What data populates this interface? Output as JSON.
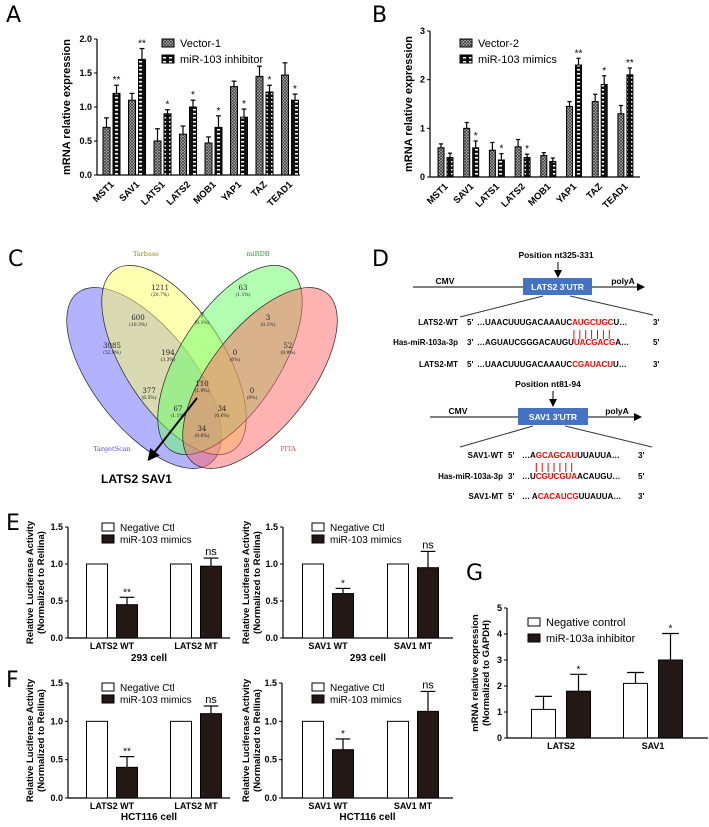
{
  "panel_labels": [
    "A",
    "B",
    "C",
    "D",
    "E",
    "F",
    "G"
  ],
  "chart_data": [
    {
      "panel": "A",
      "type": "bar",
      "ylabel": "mRNA relative expression",
      "xlabel": "",
      "ylim": [
        0,
        2.0
      ],
      "yticks": [
        "0.0",
        "0.5",
        "1.0",
        "1.5",
        "2.0"
      ],
      "legend": "top-right",
      "categories": [
        "MST1",
        "SAV1",
        "LATS1",
        "LATS2",
        "MOB1",
        "YAP1",
        "TAZ",
        "TEAD1"
      ],
      "series": [
        {
          "name": "Vector-1",
          "values": [
            0.7,
            1.1,
            0.5,
            0.6,
            0.47,
            1.3,
            1.45,
            1.47
          ],
          "errors": [
            0.14,
            0.1,
            0.18,
            0.12,
            0.09,
            0.08,
            0.15,
            0.18
          ]
        },
        {
          "name": "miR-103 inhibitor",
          "values": [
            1.2,
            1.7,
            0.9,
            1.0,
            0.7,
            0.85,
            1.22,
            1.1
          ],
          "errors": [
            0.12,
            0.16,
            0.06,
            0.1,
            0.17,
            0.12,
            0.1,
            0.09
          ]
        }
      ],
      "significance": [
        "**",
        "**",
        "*",
        "*",
        "*",
        "*",
        "*",
        "*"
      ]
    },
    {
      "panel": "B",
      "type": "bar",
      "ylabel": "mRNA relative expression",
      "xlabel": "",
      "ylim": [
        0,
        3
      ],
      "yticks": [
        "0",
        "1",
        "2",
        "3"
      ],
      "legend": "top-left",
      "categories": [
        "MST1",
        "SAV1",
        "LATS1",
        "LATS2",
        "MOB1",
        "YAP1",
        "TAZ",
        "TEAD1"
      ],
      "series": [
        {
          "name": "Vector-2",
          "values": [
            0.6,
            1.0,
            0.55,
            0.62,
            0.44,
            1.45,
            1.55,
            1.3
          ],
          "errors": [
            0.08,
            0.12,
            0.16,
            0.15,
            0.06,
            0.1,
            0.15,
            0.17
          ]
        },
        {
          "name": "miR-103 mimics",
          "values": [
            0.4,
            0.6,
            0.35,
            0.4,
            0.32,
            2.3,
            1.9,
            2.1
          ],
          "errors": [
            0.09,
            0.14,
            0.13,
            0.07,
            0.07,
            0.14,
            0.18,
            0.14
          ]
        }
      ],
      "significance": [
        "",
        "*",
        "*",
        "*",
        "",
        "**",
        "*",
        "**"
      ]
    },
    {
      "panel": "E",
      "type": "bar",
      "ylabel": [
        "Relative Luciferase Activity",
        "(Normalized to Rellina)"
      ],
      "xlabel": "293 cell",
      "ylim": [
        0,
        1.5
      ],
      "yticks": [
        "0.0",
        "0.5",
        "1.0",
        "1.5"
      ],
      "legend": "top-left",
      "categories": [
        "LATS2 WT",
        "LATS2 MT"
      ],
      "series": [
        {
          "name": "Negative Ctl",
          "values": [
            1,
            1
          ],
          "errors": [
            0,
            0
          ]
        },
        {
          "name": "miR-103 mimics",
          "values": [
            0.45,
            0.97
          ],
          "errors": [
            0.1,
            0.11
          ]
        }
      ],
      "significance": [
        "**",
        "ns"
      ]
    },
    {
      "panel": "E",
      "type": "bar",
      "ylabel": [
        "Relative Luciferase Activity",
        "(Normalized to Rellina)"
      ],
      "xlabel": "293 cell",
      "ylim": [
        0,
        1.5
      ],
      "yticks": [
        "0.0",
        "0.5",
        "1.0",
        "1.5"
      ],
      "legend": "top-left",
      "categories": [
        "SAV1 WT",
        "SAV1 MT"
      ],
      "series": [
        {
          "name": "Negative Ctl",
          "values": [
            1,
            1
          ],
          "errors": [
            0,
            0
          ]
        },
        {
          "name": "miR-103 mimics",
          "values": [
            0.6,
            0.95
          ],
          "errors": [
            0.07,
            0.22
          ]
        }
      ],
      "significance": [
        "*",
        "ns"
      ]
    },
    {
      "panel": "F",
      "type": "bar",
      "ylabel": [
        "Relative Luciferase Activity",
        "(Normalized to Rellina)"
      ],
      "xlabel": "HCT116 cell",
      "ylim": [
        0,
        1.5
      ],
      "yticks": [
        "0.0",
        "0.5",
        "1.0",
        "1.5"
      ],
      "legend": "top-left",
      "categories": [
        "LATS2 WT",
        "LATS2 MT"
      ],
      "series": [
        {
          "name": "Negative Ctl",
          "values": [
            1,
            1
          ],
          "errors": [
            0,
            0
          ]
        },
        {
          "name": "miR-103 mimics",
          "values": [
            0.4,
            1.1
          ],
          "errors": [
            0.14,
            0.1
          ]
        }
      ],
      "significance": [
        "**",
        "ns"
      ]
    },
    {
      "panel": "F",
      "type": "bar",
      "ylabel": [
        "Relative Luciferase Activity",
        "(Normalized to Rellina)"
      ],
      "xlabel": "HCT116 cell",
      "ylim": [
        0,
        1.5
      ],
      "yticks": [
        "0.0",
        "0.5",
        "1.0",
        "1.5"
      ],
      "legend": "top-left",
      "categories": [
        "SAV1 WT",
        "SAV1 MT"
      ],
      "series": [
        {
          "name": "Negative Ctl",
          "values": [
            1,
            1
          ],
          "errors": [
            0,
            0
          ]
        },
        {
          "name": "miR-103 mimics",
          "values": [
            0.63,
            1.13
          ],
          "errors": [
            0.14,
            0.26
          ]
        }
      ],
      "significance": [
        "*",
        "ns"
      ]
    },
    {
      "panel": "G",
      "type": "bar",
      "ylabel": [
        "mRNA relative expression",
        "(Normalized to GAPDH)"
      ],
      "xlabel": "",
      "ylim": [
        0,
        5
      ],
      "yticks": [
        "0",
        "1",
        "2",
        "3",
        "4",
        "5"
      ],
      "legend": "top-left",
      "categories": [
        "LATS2",
        "SAV1"
      ],
      "series": [
        {
          "name": "Negative control",
          "values": [
            1.1,
            2.1
          ],
          "errors": [
            0.5,
            0.42
          ]
        },
        {
          "name": "miR-103a inhibitor",
          "values": [
            1.8,
            3.0
          ],
          "errors": [
            0.65,
            1.02
          ]
        }
      ],
      "significance": [
        "*",
        "*"
      ]
    }
  ],
  "venn": {
    "sets": [
      {
        "name": "Tarbase",
        "color": "#8e8a2a"
      },
      {
        "name": "miRDB",
        "color": "#2e9a2e"
      },
      {
        "name": "TargetScan",
        "color": "#4a4af0"
      },
      {
        "name": "PITA",
        "color": "#f04a4a"
      }
    ],
    "regions": [
      {
        "count": "1211",
        "pct": "(20.7%)"
      },
      {
        "count": "63",
        "pct": "(1.1%)"
      },
      {
        "count": "600",
        "pct": "(10.3%)"
      },
      {
        "count": "7",
        "pct": "(0.1%)"
      },
      {
        "count": "3",
        "pct": "(0.1%)"
      },
      {
        "count": "3085",
        "pct": "(52.9%)"
      },
      {
        "count": "194",
        "pct": "(3.3%)"
      },
      {
        "count": "0",
        "pct": "(0%)"
      },
      {
        "count": "52",
        "pct": "(0.9%)"
      },
      {
        "count": "377",
        "pct": "(6.5%)"
      },
      {
        "count": "110",
        "pct": "(1.9%)"
      },
      {
        "count": "0",
        "pct": "(0%)"
      },
      {
        "count": "67",
        "pct": "(1.1%)"
      },
      {
        "count": "34",
        "pct": "(0.6%)"
      },
      {
        "count": "34",
        "pct": "(0.6%)"
      }
    ],
    "result": "LATS2   SAV1"
  },
  "constructs": [
    {
      "position": "Position  nt325-331",
      "promoter": "CMV",
      "box": "LATS2 3'UTR",
      "tail": "polyA",
      "rows": [
        {
          "label": "LATS2-WT",
          "end5": "5'",
          "parts": [
            "…UAACUUUGACAAAUC",
            "AUGCUGC",
            "U…"
          ],
          "end3": "3'"
        },
        {
          "label": "Has-miR-103a-3p",
          "end5": "3'",
          "parts": [
            "…AGUAUCGGGACAUGU",
            "UACGACG",
            "A…"
          ],
          "end3": "5'"
        },
        {
          "label": "LATS2-MT",
          "end5": "5'",
          "parts": [
            "…UAACUUUGACAAAUC",
            "CGAUACU",
            "U…"
          ],
          "end3": "3'"
        }
      ]
    },
    {
      "position": "Position  nt81-94",
      "promoter": "CMV",
      "box": "SAV1 3'UTR",
      "tail": "polyA",
      "rows": [
        {
          "label": "SAV1-WT",
          "end5": "5'",
          "parts": [
            "…A",
            "GCAGCAU",
            "UUAUUA…"
          ],
          "end3": "3'"
        },
        {
          "label": "Has-miR-103a-3p",
          "end5": "3'",
          "parts": [
            "…U",
            "CGUCGUA",
            "ACAUGU…"
          ],
          "end3": "5'"
        },
        {
          "label": "SAV1-MT",
          "end5": "5'",
          "parts": [
            "… A",
            "CACAUCG",
            "UUAUUA…"
          ],
          "end3": "3'"
        }
      ]
    }
  ],
  "colors": {
    "box": "#4472c4",
    "highlight": "#ff0000",
    "dark_bar": "#231815"
  }
}
